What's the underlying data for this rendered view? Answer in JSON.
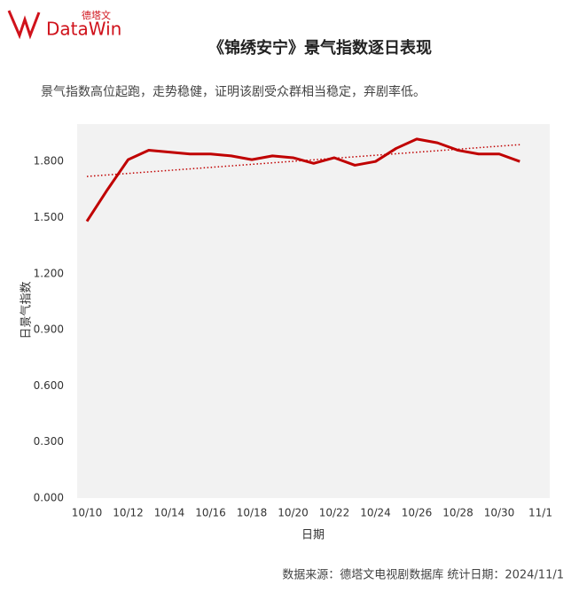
{
  "logo": {
    "name": "DataWin",
    "brand": "德塔文"
  },
  "chart_data": {
    "type": "line",
    "title": "《锦绣安宁》景气指数逐日表现",
    "subtitle": "景气指数高位起跑，走势稳健，证明该剧受众群相当稳定，弃剧率低。",
    "x_label": "日期",
    "y_label": "日景气指数",
    "source": "数据来源：德塔文电视剧数据库  统计日期：2024/11/1",
    "categories": [
      "10/10",
      null,
      "10/12",
      null,
      "10/14",
      null,
      "10/16",
      null,
      "10/18",
      null,
      "10/20",
      null,
      "10/22",
      null,
      "10/24",
      null,
      "10/26",
      null,
      "10/28",
      null,
      "10/30",
      null,
      "11/1"
    ],
    "series": [
      {
        "name": "日景气指数",
        "color": "#c00000",
        "values": [
          1.48,
          1.65,
          1.81,
          1.86,
          1.85,
          1.84,
          1.84,
          1.83,
          1.81,
          1.83,
          1.82,
          1.79,
          1.82,
          1.78,
          1.8,
          1.87,
          1.92,
          1.9,
          1.86,
          1.84,
          1.84,
          1.8,
          null
        ]
      }
    ],
    "trendline": {
      "color": "#c00000",
      "start": 1.72,
      "end": 1.89
    },
    "ylim": [
      0,
      2.0
    ],
    "yticks": [
      {
        "value": 0,
        "label": "0.000"
      },
      {
        "value": 0.3,
        "label": "0.300"
      },
      {
        "value": 0.6,
        "label": "0.600"
      },
      {
        "value": 0.9,
        "label": "0.900"
      },
      {
        "value": 1.2,
        "label": "1.200"
      },
      {
        "value": 1.5,
        "label": "1.500"
      },
      {
        "value": 1.8,
        "label": "1.800"
      }
    ],
    "grid": false
  }
}
